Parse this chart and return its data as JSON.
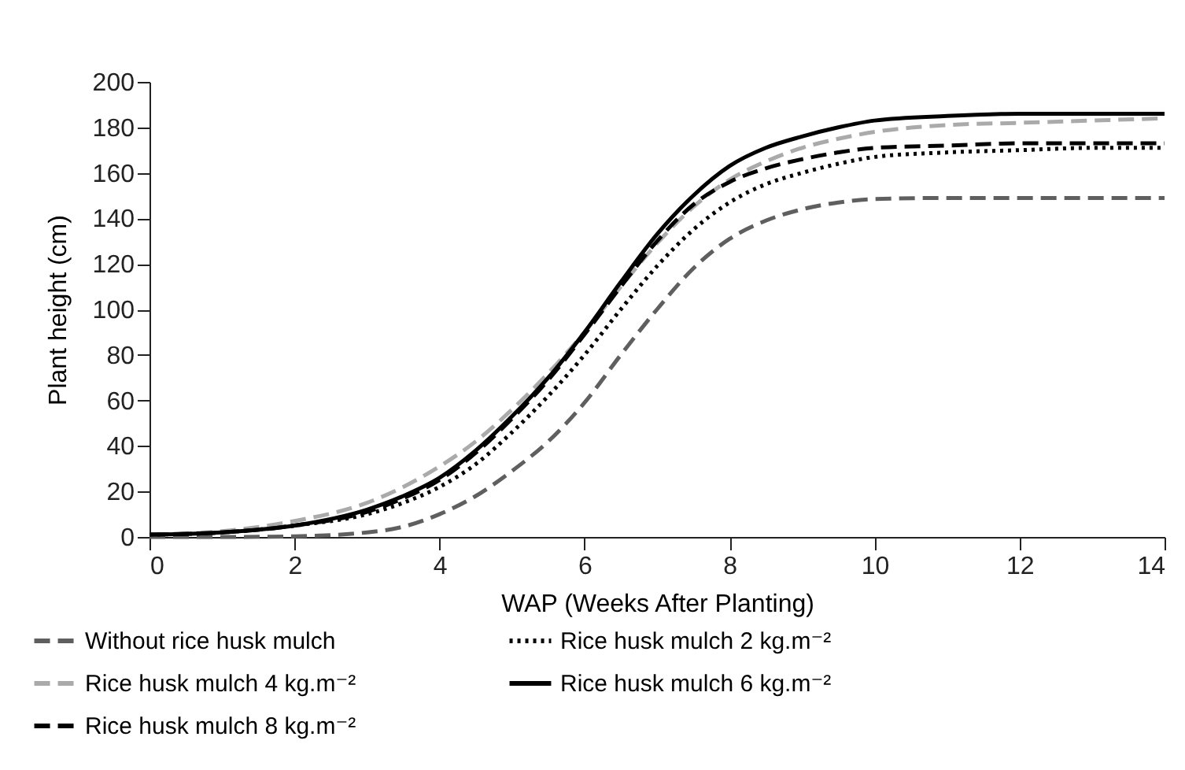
{
  "chart_data": {
    "type": "line",
    "xlabel": "WAP (Weeks After Planting)",
    "ylabel": "Plant height (cm)",
    "x": [
      0,
      1,
      2,
      3,
      3.5,
      4,
      4.5,
      5,
      5.5,
      6,
      6.5,
      7,
      7.5,
      8,
      8.5,
      9,
      9.5,
      10,
      11,
      12,
      13,
      14
    ],
    "series": [
      {
        "name": "Without rice husk mulch",
        "color": "#5f5f5f",
        "line_style": "dashed",
        "values": [
          0,
          0,
          0.3,
          2,
          4.5,
          10,
          18,
          29,
          42,
          59,
          80,
          100,
          118,
          131,
          139,
          144,
          147,
          148.5,
          149,
          149,
          149,
          149
        ]
      },
      {
        "name": "Rice husk mulch 2 kg.m⁻²",
        "color": "#000000",
        "line_style": "dotted",
        "values": [
          1,
          2,
          5,
          10,
          15,
          22,
          32,
          46,
          62,
          80,
          100,
          119,
          135,
          147,
          155,
          160,
          164,
          167,
          169,
          170,
          171,
          171
        ]
      },
      {
        "name": "Rice husk mulch 4 kg.m⁻²",
        "color": "#aaaaaa",
        "line_style": "dashed",
        "values": [
          1,
          2.5,
          7,
          15,
          22,
          31,
          42,
          56,
          72,
          90,
          110,
          129,
          145,
          157,
          165,
          171,
          175,
          178,
          181,
          182,
          183,
          184
        ]
      },
      {
        "name": "Rice husk mulch 6 kg.m⁻²",
        "color": "#000000",
        "line_style": "solid",
        "values": [
          1,
          2,
          5,
          12,
          18,
          26,
          38,
          53,
          70,
          90,
          112,
          133,
          150,
          163,
          171,
          176,
          180,
          183,
          185,
          186,
          186,
          186
        ]
      },
      {
        "name": "Rice husk mulch 8 kg.m⁻²",
        "color": "#000000",
        "line_style": "dashed",
        "values": [
          1,
          2,
          5,
          11,
          17,
          25,
          37,
          52,
          69,
          89,
          110,
          130,
          146,
          156,
          162,
          166,
          169,
          171,
          172,
          173,
          173,
          173
        ]
      }
    ],
    "xlim": [
      0,
      14
    ],
    "xticks": [
      0,
      2,
      4,
      6,
      8,
      10,
      12,
      14
    ],
    "ylim": [
      0,
      200
    ],
    "yticks": [
      0,
      20,
      40,
      60,
      80,
      100,
      120,
      140,
      160,
      180,
      200
    ],
    "grid": false,
    "legend": "bottom",
    "marker": "none"
  }
}
